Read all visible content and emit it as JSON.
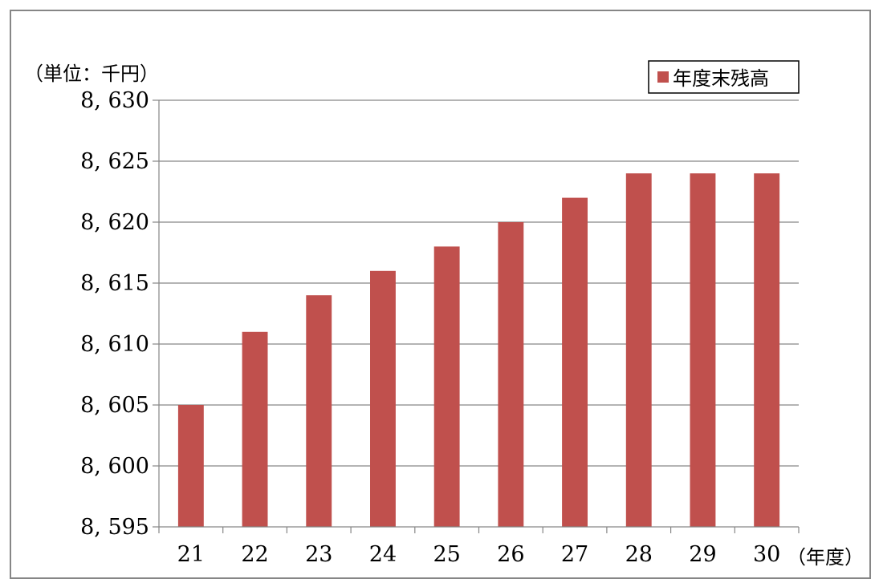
{
  "chart_data": {
    "type": "bar",
    "unit_label": "（単位：千円）",
    "xlabel": "（年度）",
    "ylabel": "",
    "title": "",
    "categories": [
      "21",
      "22",
      "23",
      "24",
      "25",
      "26",
      "27",
      "28",
      "29",
      "30"
    ],
    "series": [
      {
        "name": "年度末残高",
        "color": "#c0504d",
        "values": [
          8605,
          8611,
          8614,
          8616,
          8618,
          8620,
          8622,
          8624,
          8624,
          8624
        ]
      }
    ],
    "ylim": [
      8595,
      8630
    ],
    "ytick_step": 5,
    "ytick_labels": [
      "8, 595",
      "8, 600",
      "8, 605",
      "8, 610",
      "8, 615",
      "8, 620",
      "8, 625",
      "8, 630"
    ],
    "grid": true,
    "legend_position": "top-right"
  }
}
